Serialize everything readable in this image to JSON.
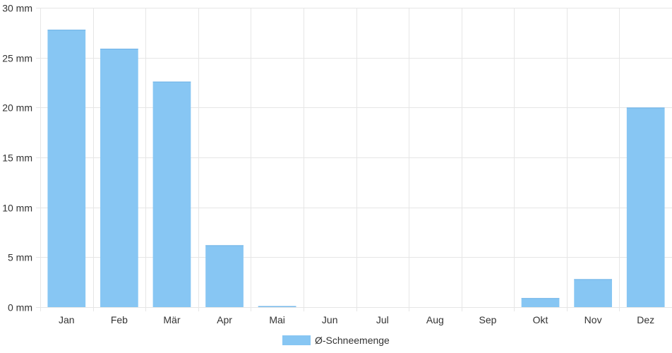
{
  "chart_data": {
    "type": "bar",
    "categories": [
      "Jan",
      "Feb",
      "Mär",
      "Apr",
      "Mai",
      "Jun",
      "Jul",
      "Aug",
      "Sep",
      "Okt",
      "Nov",
      "Dez"
    ],
    "series": [
      {
        "name": "Ø-Schneemenge",
        "values": [
          27.8,
          25.9,
          22.6,
          6.2,
          0.1,
          0,
          0,
          0,
          0,
          0.9,
          2.8,
          20.0
        ],
        "color": "#87c6f3"
      }
    ],
    "ylim": [
      0,
      30
    ],
    "yticks": [
      0,
      5,
      10,
      15,
      20,
      25,
      30
    ],
    "y_unit": "mm",
    "ytick_labels": [
      "0 mm",
      "5 mm",
      "10 mm",
      "15 mm",
      "20 mm",
      "25 mm",
      "30 mm"
    ],
    "grid": true,
    "legend_position": "bottom-center",
    "title": "",
    "xlabel": "",
    "ylabel": ""
  }
}
